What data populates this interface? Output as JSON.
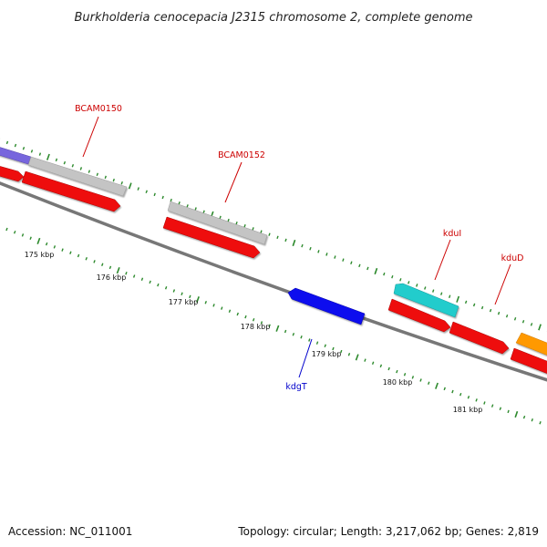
{
  "title": "Burkholderia cenocepacia J2315 chromosome 2, complete genome",
  "footer": {
    "accession": "Accession: NC_011001",
    "summary": "Topology: circular; Length: 3,217,062 bp; Genes: 2,819"
  },
  "scale_labels": [
    "175 kbp",
    "176 kbp",
    "177 kbp",
    "178 kbp",
    "179 kbp",
    "180 kbp",
    "181 kbp"
  ],
  "gene_labels": [
    {
      "text": "BCAM0150",
      "color": "#cc0000"
    },
    {
      "text": "BCAM0152",
      "color": "#cc0000"
    },
    {
      "text": "kduI",
      "color": "#cc0000"
    },
    {
      "text": "kduD",
      "color": "#cc0000"
    },
    {
      "text": "kdgT",
      "color": "#0000cc"
    }
  ],
  "colors": {
    "backbone": "#777777",
    "tick": "#2d8a2d",
    "cds": "#ee1111",
    "gene_grey": "#c4c4c4",
    "gene_purple": "#7766dd",
    "gene_blue": "#1111ee",
    "gene_cyan": "#22cccc",
    "gene_orange": "#ff9900"
  }
}
